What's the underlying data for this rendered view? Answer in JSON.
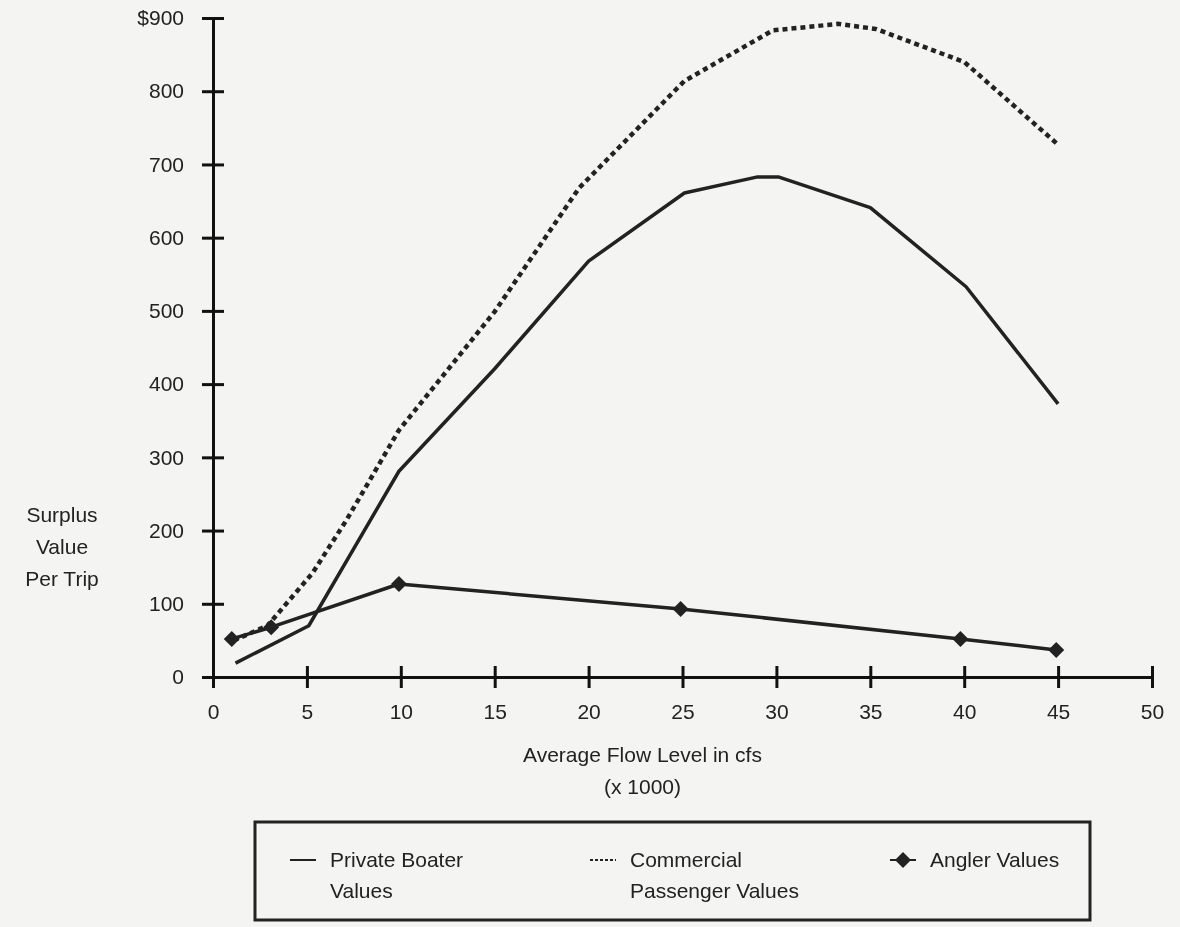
{
  "chart_data": {
    "type": "line",
    "xlabel": "Average Flow Level in cfs\n(x 1000)",
    "ylabel": "Surplus\nValue\nPer Trip",
    "xlim": [
      0,
      50
    ],
    "xticks": [
      0,
      5,
      10,
      15,
      20,
      25,
      30,
      35,
      40,
      45,
      50
    ],
    "ylim": [
      0,
      900
    ],
    "yticks": [
      0,
      100,
      200,
      300,
      400,
      500,
      600,
      700,
      800,
      {
        "value": 900,
        "label": "$900"
      }
    ],
    "grid": false,
    "legend": "bottom",
    "series": [
      {
        "name": "Private Boater Values",
        "color": "#222222",
        "line_style": "solid",
        "marker": "none",
        "x": [
          1.2,
          5.1,
          9.9,
          15,
          20,
          25.1,
          29,
          30.1,
          35,
          40.1,
          45
        ],
        "values": [
          19,
          70,
          281,
          421,
          568,
          661,
          683,
          683,
          641,
          533,
          373
        ]
      },
      {
        "name": "Commercial Passenger Values",
        "color": "#222222",
        "line_style": "dashed",
        "marker": "none",
        "x": [
          1.1,
          2.9,
          5.3,
          7.1,
          9.9,
          15,
          19.5,
          25.1,
          29.8,
          33.3,
          35.3,
          40,
          45
        ],
        "values": [
          50,
          70,
          142,
          214,
          337,
          499,
          668,
          814,
          883,
          892,
          885,
          840,
          727
        ]
      },
      {
        "name": "Angler Values",
        "color": "#222222",
        "line_style": "solid",
        "marker": "diamond",
        "x": [
          1,
          3.1,
          9.9,
          24.9,
          39.8,
          44.9
        ],
        "values": [
          52,
          68,
          127,
          93,
          52,
          37
        ]
      }
    ]
  }
}
